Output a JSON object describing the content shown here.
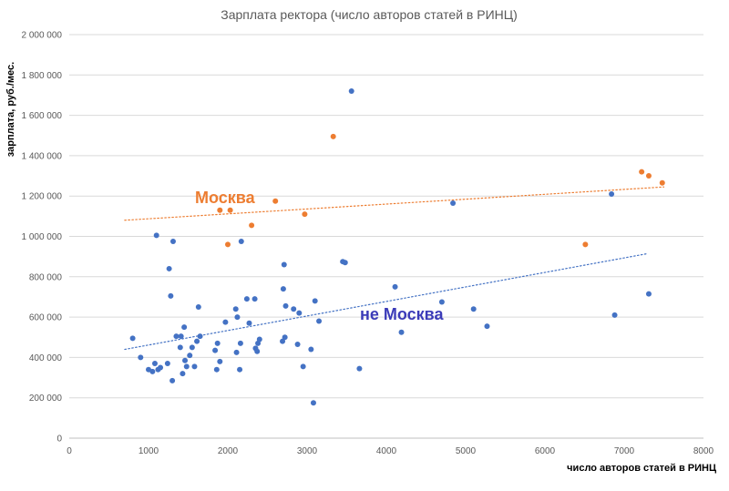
{
  "chart_data": {
    "type": "scatter",
    "title": "Зарплата ректора (число авторов статей в РИНЦ)",
    "xlabel": "число авторов статей в РИНЦ",
    "ylabel": "зарплата, руб./мес.",
    "xlim": [
      0,
      8000
    ],
    "ylim": [
      0,
      2000000
    ],
    "x_ticks": [
      "0",
      "1000",
      "2000",
      "3000",
      "4000",
      "5000",
      "6000",
      "7000",
      "8000"
    ],
    "y_ticks": [
      "0",
      "200 000",
      "400 000",
      "600 000",
      "800 000",
      "1 000 000",
      "1 200 000",
      "1 400 000",
      "1 600 000",
      "1 800 000",
      "2 000 000"
    ],
    "grid": "horizontal",
    "legend": "none",
    "annotations": [
      {
        "text": "Москва",
        "color": "#ED7D31"
      },
      {
        "text": "не Москва",
        "color": "#3B3BB8"
      }
    ],
    "series": [
      {
        "name": "Москва",
        "color": "#ED7D31",
        "trendline": {
          "x": [
            700,
            7500
          ],
          "y": [
            1080000,
            1245000
          ]
        },
        "points": [
          [
            1900,
            1130000
          ],
          [
            2030,
            1130000
          ],
          [
            2600,
            1175000
          ],
          [
            2000,
            960000
          ],
          [
            2300,
            1055000
          ],
          [
            2970,
            1110000
          ],
          [
            3330,
            1495000
          ],
          [
            6510,
            960000
          ],
          [
            7220,
            1320000
          ],
          [
            7310,
            1300000
          ],
          [
            7480,
            1265000
          ]
        ]
      },
      {
        "name": "не Москва",
        "color": "#4472C4",
        "trendline": {
          "x": [
            700,
            7300
          ],
          "y": [
            440000,
            915000
          ]
        },
        "points": [
          [
            800,
            495000
          ],
          [
            900,
            400000
          ],
          [
            1000,
            340000
          ],
          [
            1050,
            330000
          ],
          [
            1080,
            370000
          ],
          [
            1100,
            1005000
          ],
          [
            1150,
            350000
          ],
          [
            1120,
            340000
          ],
          [
            1240,
            370000
          ],
          [
            1260,
            840000
          ],
          [
            1280,
            705000
          ],
          [
            1300,
            285000
          ],
          [
            1310,
            975000
          ],
          [
            1350,
            505000
          ],
          [
            1400,
            450000
          ],
          [
            1410,
            505000
          ],
          [
            1430,
            320000
          ],
          [
            1450,
            550000
          ],
          [
            1460,
            385000
          ],
          [
            1480,
            355000
          ],
          [
            1520,
            410000
          ],
          [
            1550,
            450000
          ],
          [
            1580,
            355000
          ],
          [
            1610,
            480000
          ],
          [
            1630,
            650000
          ],
          [
            1650,
            505000
          ],
          [
            1840,
            435000
          ],
          [
            1860,
            340000
          ],
          [
            1870,
            470000
          ],
          [
            1900,
            380000
          ],
          [
            1970,
            575000
          ],
          [
            2100,
            640000
          ],
          [
            2110,
            425000
          ],
          [
            2120,
            600000
          ],
          [
            2150,
            340000
          ],
          [
            2160,
            470000
          ],
          [
            2170,
            975000
          ],
          [
            2240,
            690000
          ],
          [
            2270,
            570000
          ],
          [
            2340,
            690000
          ],
          [
            2350,
            445000
          ],
          [
            2370,
            430000
          ],
          [
            2380,
            470000
          ],
          [
            2400,
            490000
          ],
          [
            2690,
            480000
          ],
          [
            2700,
            740000
          ],
          [
            2710,
            860000
          ],
          [
            2720,
            500000
          ],
          [
            2730,
            655000
          ],
          [
            2830,
            640000
          ],
          [
            2880,
            465000
          ],
          [
            2900,
            620000
          ],
          [
            2950,
            355000
          ],
          [
            3050,
            440000
          ],
          [
            3080,
            175000
          ],
          [
            3100,
            680000
          ],
          [
            3150,
            580000
          ],
          [
            3450,
            875000
          ],
          [
            3480,
            870000
          ],
          [
            3560,
            1720000
          ],
          [
            3660,
            345000
          ],
          [
            4110,
            750000
          ],
          [
            4190,
            525000
          ],
          [
            4700,
            675000
          ],
          [
            4840,
            1165000
          ],
          [
            5100,
            640000
          ],
          [
            5270,
            555000
          ],
          [
            6840,
            1210000
          ],
          [
            6880,
            610000
          ],
          [
            7310,
            715000
          ]
        ]
      }
    ]
  }
}
